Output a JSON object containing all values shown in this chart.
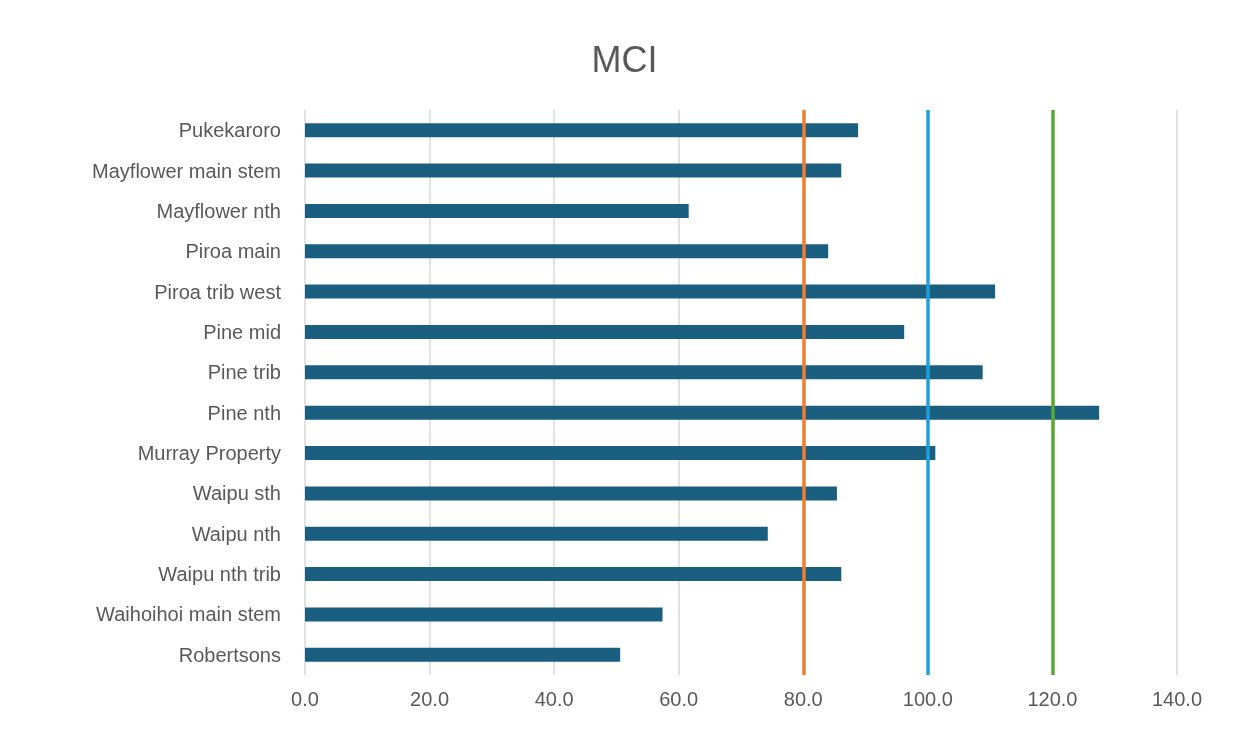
{
  "chart_data": {
    "type": "bar",
    "title": "MCI",
    "orientation": "horizontal",
    "categories": [
      "Pukekaroro",
      "Mayflower main stem",
      "Mayflower nth",
      "Piroa main",
      "Piroa trib west",
      "Pine mid",
      "Pine trib",
      "Pine nth",
      "Murray Property",
      "Waipu sth",
      "Waipu nth",
      "Waipu nth trib",
      "Waihoihoi main stem",
      "Robertsons"
    ],
    "values": [
      88.8,
      86.1,
      61.6,
      84.0,
      110.8,
      96.2,
      108.8,
      127.5,
      101.2,
      85.4,
      74.3,
      86.1,
      57.4,
      50.6
    ],
    "color": "#1a5e80",
    "xlim": [
      0,
      140
    ],
    "xticks": [
      {
        "value": 0,
        "label": "0.0"
      },
      {
        "value": 20,
        "label": "20.0"
      },
      {
        "value": 40,
        "label": "40.0"
      },
      {
        "value": 60,
        "label": "60.0"
      },
      {
        "value": 80,
        "label": "80.0"
      },
      {
        "value": 100,
        "label": "100.0"
      },
      {
        "value": 120,
        "label": "120.0"
      },
      {
        "value": 140,
        "label": "140.0"
      }
    ],
    "grid": "x",
    "ref_lines": [
      {
        "axis": "x",
        "value": 80,
        "color": "#ed7d31"
      },
      {
        "axis": "x",
        "value": 100,
        "color": "#1fa0d8"
      },
      {
        "axis": "x",
        "value": 120,
        "color": "#5aa832"
      }
    ]
  }
}
